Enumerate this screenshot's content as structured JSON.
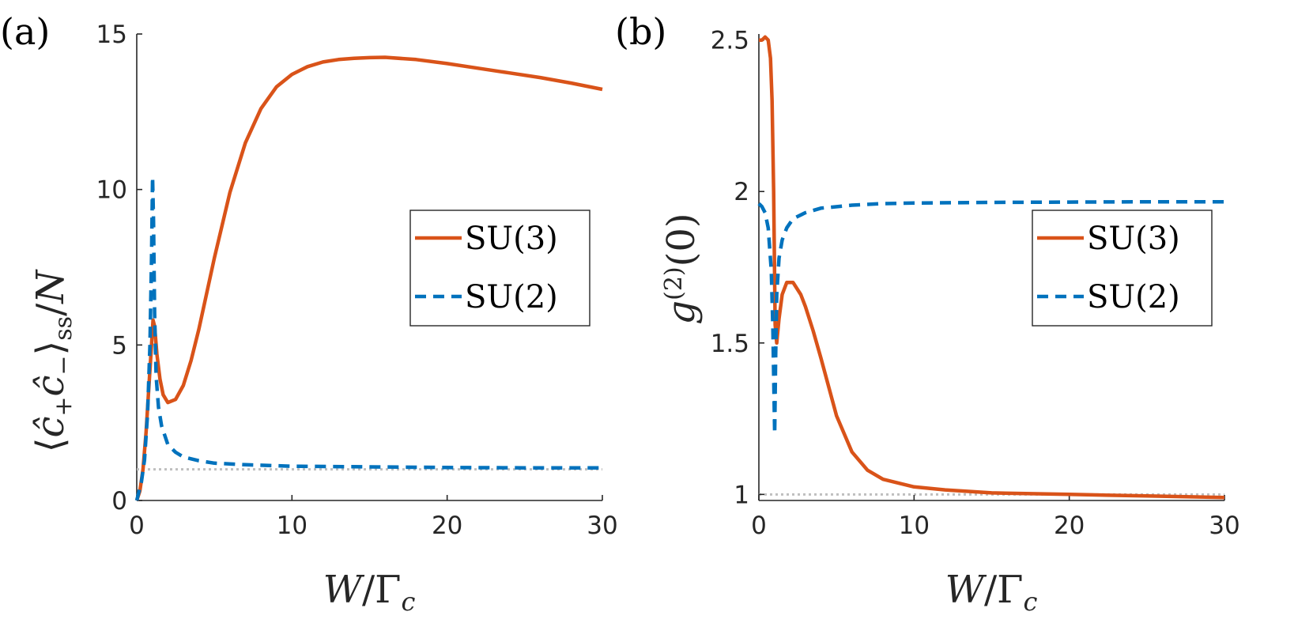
{
  "chart_data": [
    {
      "type": "line",
      "panel_label": "(a)",
      "xlabel": "W/Γ_c",
      "ylabel": "⟨ĉ₊ĉ₋⟩ₛₛ/N",
      "xlim": [
        0,
        30
      ],
      "ylim": [
        0,
        15
      ],
      "xticks": [
        0,
        10,
        20,
        30
      ],
      "yticks": [
        0,
        5,
        10,
        15
      ],
      "legend_position": "right",
      "reference_line": {
        "y": 1,
        "color": "#bfbfbf",
        "style": "dotted"
      },
      "series": [
        {
          "name": "SU(3)",
          "color": "#D95319",
          "style": "solid",
          "x": [
            0,
            0.2,
            0.4,
            0.6,
            0.8,
            0.95,
            1.05,
            1.15,
            1.3,
            1.5,
            1.7,
            2.0,
            2.5,
            3,
            3.5,
            4,
            5,
            6,
            7,
            8,
            9,
            10,
            11,
            12,
            13,
            14,
            15,
            16,
            18,
            20,
            22,
            24,
            26,
            28,
            30
          ],
          "y": [
            0,
            0.3,
            1.0,
            2.2,
            3.8,
            5.0,
            5.8,
            5.6,
            4.7,
            3.9,
            3.4,
            3.15,
            3.25,
            3.7,
            4.5,
            5.5,
            7.8,
            9.9,
            11.5,
            12.6,
            13.3,
            13.7,
            13.95,
            14.1,
            14.18,
            14.22,
            14.24,
            14.25,
            14.18,
            14.05,
            13.9,
            13.75,
            13.6,
            13.42,
            13.22
          ]
        },
        {
          "name": "SU(2)",
          "color": "#0072BD",
          "style": "dashed",
          "x": [
            0,
            0.3,
            0.5,
            0.7,
            0.85,
            0.95,
            1.02,
            1.08,
            1.15,
            1.25,
            1.4,
            1.6,
            2.0,
            2.5,
            3,
            4,
            5,
            7,
            10,
            15,
            20,
            25,
            30
          ],
          "y": [
            0,
            0.6,
            1.3,
            2.8,
            5.0,
            7.8,
            10.4,
            9.0,
            6.0,
            4.0,
            3.0,
            2.4,
            1.8,
            1.55,
            1.4,
            1.28,
            1.2,
            1.15,
            1.1,
            1.08,
            1.06,
            1.05,
            1.05
          ]
        }
      ]
    },
    {
      "type": "line",
      "panel_label": "(b)",
      "xlabel": "W/Γ_c",
      "ylabel": "g⁽²⁾(0)",
      "xlim": [
        0,
        30
      ],
      "ylim": [
        0.98,
        2.52
      ],
      "xticks": [
        0,
        10,
        20,
        30
      ],
      "yticks": [
        1,
        1.5,
        2,
        2.5
      ],
      "legend_position": "right",
      "reference_line": {
        "y": 1,
        "color": "#bfbfbf",
        "style": "dotted"
      },
      "series": [
        {
          "name": "SU(3)",
          "color": "#D95319",
          "style": "solid",
          "x": [
            0,
            0.2,
            0.4,
            0.6,
            0.75,
            0.85,
            0.95,
            1.05,
            1.15,
            1.3,
            1.5,
            1.8,
            2.2,
            2.7,
            3,
            3.5,
            4,
            5,
            6,
            7,
            8,
            10,
            12,
            15,
            20,
            25,
            30
          ],
          "y": [
            2.5,
            2.5,
            2.51,
            2.5,
            2.44,
            2.3,
            2.0,
            1.56,
            1.5,
            1.58,
            1.66,
            1.7,
            1.7,
            1.66,
            1.62,
            1.54,
            1.45,
            1.26,
            1.14,
            1.08,
            1.05,
            1.025,
            1.015,
            1.005,
            1.0,
            0.995,
            0.99
          ]
        },
        {
          "name": "SU(2)",
          "color": "#0072BD",
          "style": "dashed",
          "x": [
            0,
            0.2,
            0.4,
            0.6,
            0.8,
            0.9,
            0.97,
            1.02,
            1.08,
            1.15,
            1.3,
            1.5,
            1.8,
            2.2,
            3,
            4,
            6,
            8,
            10,
            15,
            20,
            25,
            30
          ],
          "y": [
            1.96,
            1.95,
            1.93,
            1.88,
            1.74,
            1.55,
            1.35,
            1.2,
            1.45,
            1.66,
            1.78,
            1.84,
            1.88,
            1.91,
            1.93,
            1.945,
            1.955,
            1.96,
            1.962,
            1.964,
            1.965,
            1.966,
            1.966
          ]
        }
      ]
    }
  ]
}
